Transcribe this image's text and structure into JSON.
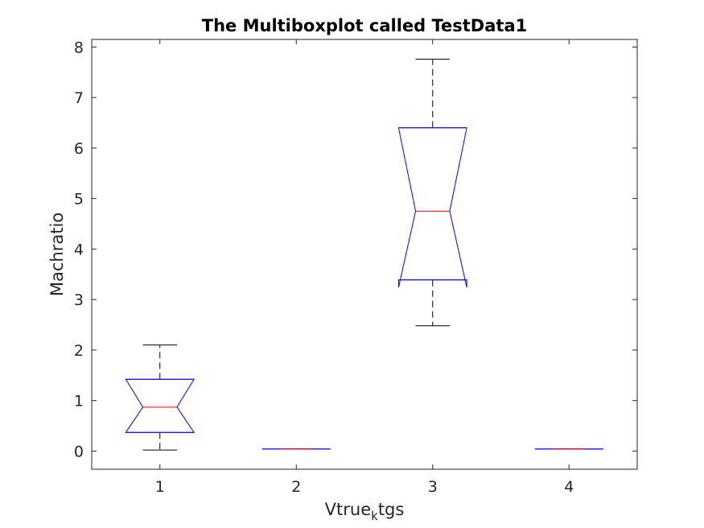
{
  "chart_data": {
    "type": "boxplot",
    "title": "The Multiboxplot called TestData1",
    "xlabel": {
      "main": "Vtrue",
      "subscript": "k",
      "suffix": "tgs"
    },
    "ylabel": "Machratio",
    "categories": [
      "1",
      "2",
      "3",
      "4"
    ],
    "xlim": [
      0.5,
      4.5
    ],
    "ylim": [
      -0.36,
      8.15
    ],
    "yticks": [
      0,
      1,
      2,
      3,
      4,
      5,
      6,
      7,
      8
    ],
    "notched": true,
    "boxes": [
      {
        "category": "1",
        "whisker_low": 0.02,
        "q1": 0.37,
        "median": 0.87,
        "q3": 1.42,
        "whisker_high": 2.1,
        "notch_low": 0.37,
        "notch_high": 1.42
      },
      {
        "category": "2",
        "whisker_low": 0.04,
        "q1": 0.04,
        "median": 0.04,
        "q3": 0.04,
        "whisker_high": 0.04,
        "notch_low": 0.04,
        "notch_high": 0.04
      },
      {
        "category": "3",
        "whisker_low": 2.48,
        "q1": 3.39,
        "median": 4.75,
        "q3": 6.4,
        "whisker_high": 7.76,
        "notch_low": 3.24,
        "notch_high": 6.4
      },
      {
        "category": "4",
        "whisker_low": 0.04,
        "q1": 0.04,
        "median": 0.04,
        "q3": 0.04,
        "whisker_high": 0.04,
        "notch_low": 0.04,
        "notch_high": 0.04
      }
    ],
    "colors": {
      "box": "#0000ff",
      "median": "#ff0000",
      "whisker": "#000000",
      "axes": "#262626"
    },
    "grid": false,
    "legend": "none"
  }
}
